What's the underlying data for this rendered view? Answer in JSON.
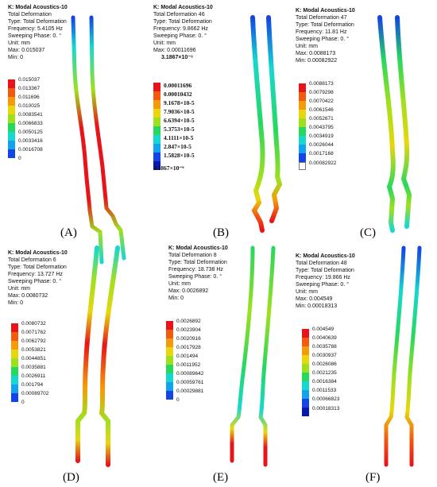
{
  "colors": {
    "legend": [
      "#e8141a",
      "#f25a10",
      "#f59a0a",
      "#e8d70c",
      "#9fe01c",
      "#27d85e",
      "#16d8cf",
      "#12a2ee",
      "#1244e6",
      "#0a1aa8"
    ]
  },
  "panels": [
    {
      "caption": "(A)",
      "header": {
        "title": "K: Modal Acoustics-10",
        "lines": [
          "Total Deformation",
          "Type: Total Deformation",
          "Frequency: 5.4105 Hz",
          "Sweeping Phase: 0. °",
          "Unit: mm",
          "Max: 0.015037",
          "Min: 0"
        ]
      },
      "legend": [
        "0.015037",
        "0.013367",
        "0.011696",
        "0.010025",
        "0.0083541",
        "0.0066833",
        "0.0050125",
        "0.0033416",
        "0.0016708",
        "0"
      ]
    },
    {
      "caption": "(B)",
      "header": {
        "title": "K: Modal Acoustics-10",
        "lines": [
          "Total Deformation 46",
          "Type: Total Deformation",
          "Frequency: 9.8662 Hz",
          "Sweeping Phase: 0. °",
          "Unit: mm",
          "Max: 0.00011696"
        ],
        "extra": "3.1867×10⁻⁶"
      },
      "legend": [
        "0.00011696",
        "0.00010432",
        "9.1678×10-5",
        "7.9036×10-5",
        "6.6394×10-5",
        "5.3753×10-5",
        "4.1111×10-5",
        "2.847×10-5",
        "1.5828×10-5",
        "3.1867×10⁻⁶"
      ]
    },
    {
      "caption": "(C)",
      "header": {
        "title": "K: Modal Acoustics-10",
        "lines": [
          "Total Deformation 47",
          "Type: Total Deformation",
          "Frequency: 11.81 Hz",
          "Sweeping Phase: 0. °",
          "Unit: mm",
          "Max: 0.0088173",
          "Min: 0.00082922"
        ]
      },
      "legend": [
        "0.0088173",
        "0.0079298",
        "0.0070422",
        "0.0061546",
        "0.0052671",
        "0.0043795",
        "0.0034919",
        "0.0026044",
        "0.0017168",
        "0.00082922"
      ]
    },
    {
      "caption": "(D)",
      "header": {
        "title": "K: Modal Acoustics-10",
        "lines": [
          "Total Deformation 6",
          "Type: Total Deformation",
          "Frequency: 13.727 Hz",
          "Sweeping Phase: 0. °",
          "Unit: mm",
          "Max: 0.0080732",
          "Min: 0"
        ]
      },
      "legend": [
        "0.0080732",
        "0.0071762",
        "0.0062792",
        "0.0053821",
        "0.0044851",
        "0.0035881",
        "0.0026911",
        "0.001794",
        "0.00089702",
        "0"
      ]
    },
    {
      "caption": "(E)",
      "header": {
        "title": "K: Modal Acoustics-10",
        "lines": [
          "Total Deformation 8",
          "Type: Total Deformation",
          "Frequency: 18.738 Hz",
          "Sweeping Phase: 0. °",
          "Unit: mm",
          "Max: 0.0026892",
          "Min: 0"
        ]
      },
      "legend": [
        "0.0026892",
        "0.0023904",
        "0.0020916",
        "0.0017928",
        "0.001494",
        "0.0011952",
        "0.00089642",
        "0.00059761",
        "0.00029881",
        "0"
      ]
    },
    {
      "caption": "(F)",
      "header": {
        "title": "K: Modal Acoustics-10",
        "lines": [
          "Total Deformation 48",
          "Type: Total Deformation",
          "Frequency: 19.866 Hz",
          "Sweeping Phase: 0. °",
          "Unit: mm",
          "Max: 0.004549",
          "Min: 0.00018313"
        ]
      },
      "legend": [
        "0.004549",
        "0.0040639",
        "0.0035788",
        "0.0030937",
        "0.0026086",
        "0.0021235",
        "0.0016384",
        "0.0011533",
        "0.00066823",
        "0.00018313"
      ]
    }
  ]
}
